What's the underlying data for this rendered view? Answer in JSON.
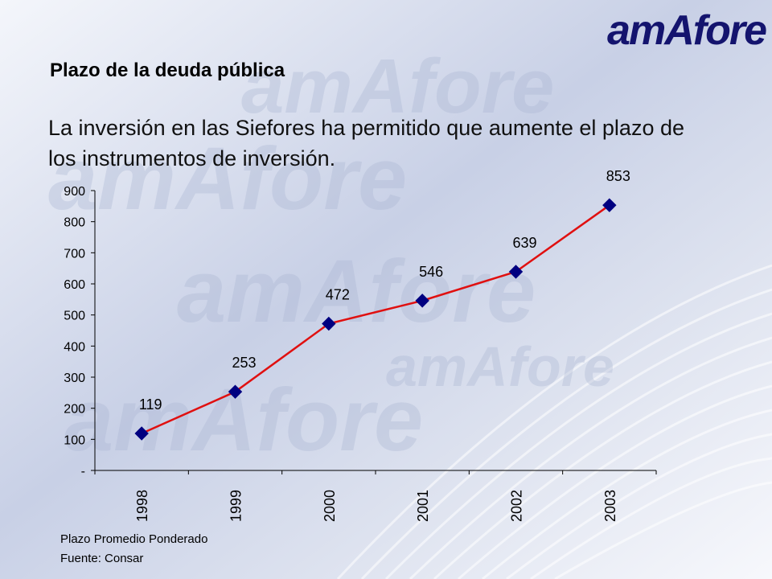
{
  "logo": "amAfore",
  "title": "Plazo de la deuda pública",
  "subtitle": "La inversión en las Siefores ha permitido que aumente el plazo de los instrumentos de inversión.",
  "notes": {
    "line1": "Plazo Promedio Ponderado",
    "line2": "Fuente: Consar"
  },
  "colors": {
    "line": "#e01010",
    "marker": "#000080",
    "logo": "#14146e"
  },
  "chart_data": {
    "type": "line",
    "categories": [
      "1998",
      "1999",
      "2000",
      "2001",
      "2002",
      "2003"
    ],
    "values": [
      119,
      253,
      472,
      546,
      639,
      853
    ],
    "data_labels": [
      "119",
      "253",
      "472",
      "546",
      "639",
      "853"
    ],
    "ylim": [
      0,
      900
    ],
    "yticks": [
      0,
      100,
      200,
      300,
      400,
      500,
      600,
      700,
      800,
      900
    ],
    "ytick_labels": [
      "-",
      "100",
      "200",
      "300",
      "400",
      "500",
      "600",
      "700",
      "800",
      "900"
    ],
    "grid": false,
    "legend": "none",
    "marker": "diamond"
  }
}
